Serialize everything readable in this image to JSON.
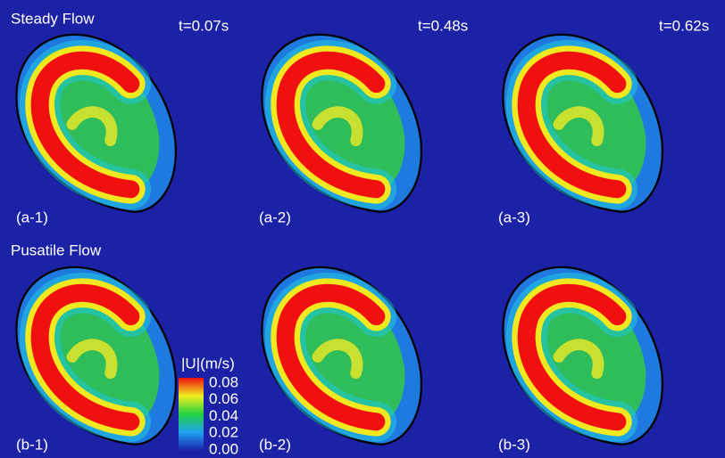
{
  "rows": [
    {
      "title": "Steady Flow",
      "panels": [
        {
          "label": "(a-1)",
          "time": "t=0.07s"
        },
        {
          "label": "(a-2)",
          "time": "t=0.48s"
        },
        {
          "label": "(a-3)",
          "time": "t=0.62s"
        }
      ]
    },
    {
      "title": "Pusatile Flow",
      "panels": [
        {
          "label": "(b-1)"
        },
        {
          "label": "(b-2)"
        },
        {
          "label": "(b-3)"
        }
      ]
    }
  ],
  "colorbar": {
    "title": "|U|(m/s)",
    "ticks": [
      "0.08",
      "0.06",
      "0.04",
      "0.02",
      "0.00"
    ]
  }
}
